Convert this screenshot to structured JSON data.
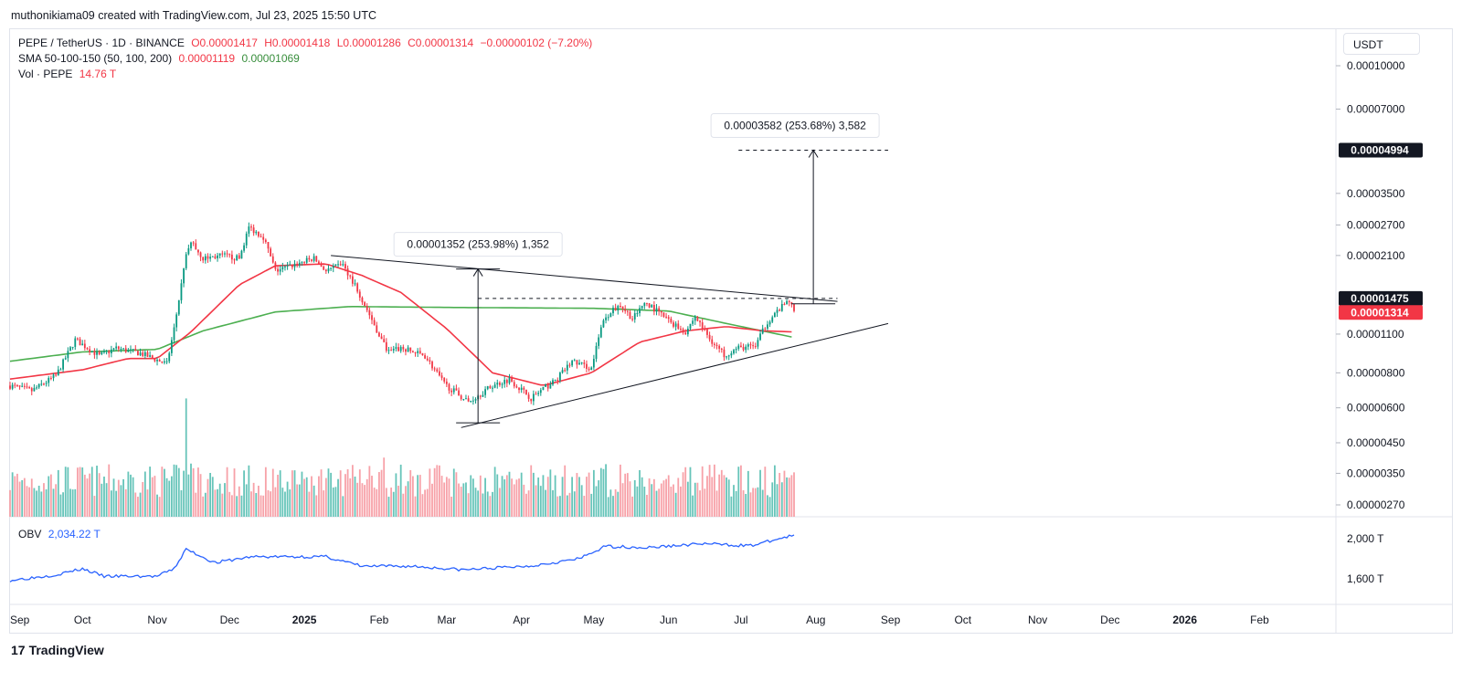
{
  "header": {
    "credit": "muthonikiama09 created with TradingView.com, Jul 23, 2025 15:50 UTC"
  },
  "legend": {
    "symbol": "PEPE / TetherUS · 1D · BINANCE",
    "open": "O0.00001417",
    "high": "H0.00001418",
    "low": "L0.00001286",
    "close": "C0.00001314",
    "change": "−0.00000102 (−7.20%)",
    "sma_label": "SMA 50-100-150 (50, 100, 200)",
    "sma_value_1": "0.00001119",
    "sma_value_2": "0.00001069",
    "vol_label": "Vol · PEPE",
    "vol_value": "14.76 T",
    "obv_label": "OBV",
    "obv_value": "2,034.22 T"
  },
  "currency": "USDT",
  "footer": {
    "brand": "TradingView",
    "logo_mark": "17"
  },
  "colors": {
    "sma50": "#f23645",
    "sma200": "#4caf50",
    "obv": "#2962ff",
    "up": "#089981",
    "down": "#f23645",
    "vol_up": "#66c4b9",
    "vol_down": "#f7a1a8"
  },
  "chart_data": {
    "type": "candlestick",
    "scale": "log",
    "price_axis_labels": [
      "0.00010000",
      "0.00007000",
      "0.00004994",
      "0.00003500",
      "0.00002700",
      "0.00002100",
      "0.00001475",
      "0.00001314",
      "0.00001100",
      "0.00000800",
      "0.00000600",
      "0.00000450",
      "0.00000350",
      "0.00000270"
    ],
    "price_ticks": [
      0.0001,
      7e-05,
      3.5e-05,
      2.7e-05,
      2.1e-05,
      1.1e-05,
      8e-06,
      6e-06,
      4.5e-06,
      3.5e-06,
      2.7e-06
    ],
    "price_markers": [
      {
        "label": "0.00004994",
        "value": 4.994e-05,
        "style": "dark"
      },
      {
        "label": "0.00001475",
        "value": 1.475e-05,
        "style": "dark"
      },
      {
        "label": "0.00001314",
        "value": 1.314e-05,
        "style": "red"
      }
    ],
    "time_labels": [
      {
        "label": "Sep",
        "date": "2024-09-01",
        "bold": false
      },
      {
        "label": "Oct",
        "date": "2024-10-01",
        "bold": false
      },
      {
        "label": "Nov",
        "date": "2024-11-01",
        "bold": false
      },
      {
        "label": "Dec",
        "date": "2024-12-01",
        "bold": false
      },
      {
        "label": "2025",
        "date": "2025-01-01",
        "bold": true
      },
      {
        "label": "Feb",
        "date": "2025-02-01",
        "bold": false
      },
      {
        "label": "Mar",
        "date": "2025-03-01",
        "bold": false
      },
      {
        "label": "Apr",
        "date": "2025-04-01",
        "bold": false
      },
      {
        "label": "May",
        "date": "2025-05-01",
        "bold": false
      },
      {
        "label": "Jun",
        "date": "2025-06-01",
        "bold": false
      },
      {
        "label": "Jul",
        "date": "2025-07-01",
        "bold": false
      },
      {
        "label": "Aug",
        "date": "2025-08-01",
        "bold": false
      },
      {
        "label": "Sep",
        "date": "2025-09-01",
        "bold": false
      },
      {
        "label": "Oct",
        "date": "2025-10-01",
        "bold": false
      },
      {
        "label": "Nov",
        "date": "2025-11-01",
        "bold": false
      },
      {
        "label": "Dec",
        "date": "2025-12-01",
        "bold": false
      },
      {
        "label": "2026",
        "date": "2026-01-01",
        "bold": true
      },
      {
        "label": "Feb",
        "date": "2026-02-01",
        "bold": false
      }
    ],
    "close_path": [
      [
        "2024-09-01",
        7.2e-06
      ],
      [
        "2024-09-10",
        6.9e-06
      ],
      [
        "2024-09-20",
        7.8e-06
      ],
      [
        "2024-09-28",
        1.05e-05
      ],
      [
        "2024-10-08",
        9.2e-06
      ],
      [
        "2024-10-15",
        9.8e-06
      ],
      [
        "2024-10-25",
        9.4e-06
      ],
      [
        "2024-11-05",
        8.6e-06
      ],
      [
        "2024-11-08",
        1.15e-05
      ],
      [
        "2024-11-13",
        2.1e-05
      ],
      [
        "2024-11-15",
        2.35e-05
      ],
      [
        "2024-11-20",
        2.05e-05
      ],
      [
        "2024-11-28",
        2.1e-05
      ],
      [
        "2024-12-05",
        2.05e-05
      ],
      [
        "2024-12-09",
        2.65e-05
      ],
      [
        "2024-12-15",
        2.45e-05
      ],
      [
        "2024-12-20",
        1.85e-05
      ],
      [
        "2024-12-28",
        1.95e-05
      ],
      [
        "2025-01-05",
        2.05e-05
      ],
      [
        "2025-01-10",
        1.85e-05
      ],
      [
        "2025-01-17",
        1.95e-05
      ],
      [
        "2025-01-22",
        1.65e-05
      ],
      [
        "2025-02-02",
        1.05e-05
      ],
      [
        "2025-02-05",
        9.5e-06
      ],
      [
        "2025-02-10",
        9.8e-06
      ],
      [
        "2025-02-20",
        9.2e-06
      ],
      [
        "2025-02-28",
        7.3e-06
      ],
      [
        "2025-03-10",
        6.3e-06
      ],
      [
        "2025-03-20",
        7.2e-06
      ],
      [
        "2025-03-27",
        7.6e-06
      ],
      [
        "2025-04-05",
        6.5e-06
      ],
      [
        "2025-04-10",
        7e-06
      ],
      [
        "2025-04-15",
        7.5e-06
      ],
      [
        "2025-04-22",
        8.8e-06
      ],
      [
        "2025-04-30",
        8.3e-06
      ],
      [
        "2025-05-05",
        1.25e-05
      ],
      [
        "2025-05-12",
        1.4e-05
      ],
      [
        "2025-05-17",
        1.25e-05
      ],
      [
        "2025-05-23",
        1.42e-05
      ],
      [
        "2025-06-01",
        1.23e-05
      ],
      [
        "2025-06-08",
        1.12e-05
      ],
      [
        "2025-06-12",
        1.27e-05
      ],
      [
        "2025-06-18",
        1.06e-05
      ],
      [
        "2025-06-24",
        9.3e-06
      ],
      [
        "2025-06-30",
        9.8e-06
      ],
      [
        "2025-07-07",
        1e-05
      ],
      [
        "2025-07-12",
        1.22e-05
      ],
      [
        "2025-07-17",
        1.35e-05
      ],
      [
        "2025-07-21",
        1.45e-05
      ],
      [
        "2025-07-23",
        1.314e-05
      ]
    ],
    "sma50": [
      [
        "2024-09-01",
        7.6e-06
      ],
      [
        "2024-10-01",
        8.2e-06
      ],
      [
        "2024-10-20",
        9e-06
      ],
      [
        "2024-11-01",
        9e-06
      ],
      [
        "2024-11-15",
        1.12e-05
      ],
      [
        "2024-12-05",
        1.65e-05
      ],
      [
        "2024-12-20",
        1.93e-05
      ],
      [
        "2025-01-10",
        1.96e-05
      ],
      [
        "2025-01-25",
        1.78e-05
      ],
      [
        "2025-02-10",
        1.55e-05
      ],
      [
        "2025-03-01",
        1.15e-05
      ],
      [
        "2025-03-20",
        8e-06
      ],
      [
        "2025-04-10",
        7.2e-06
      ],
      [
        "2025-04-30",
        8e-06
      ],
      [
        "2025-05-20",
        1.03e-05
      ],
      [
        "2025-06-08",
        1.13e-05
      ],
      [
        "2025-06-25",
        1.17e-05
      ],
      [
        "2025-07-10",
        1.13e-05
      ],
      [
        "2025-07-23",
        1.12e-05
      ]
    ],
    "sma200": [
      [
        "2024-09-01",
        8.8e-06
      ],
      [
        "2024-10-01",
        9.5e-06
      ],
      [
        "2024-11-01",
        9.7e-06
      ],
      [
        "2024-11-20",
        1.13e-05
      ],
      [
        "2024-12-20",
        1.32e-05
      ],
      [
        "2025-01-20",
        1.38e-05
      ],
      [
        "2025-03-01",
        1.37e-05
      ],
      [
        "2025-05-01",
        1.36e-05
      ],
      [
        "2025-06-01",
        1.33e-05
      ],
      [
        "2025-06-25",
        1.2e-05
      ],
      [
        "2025-07-23",
        1.07e-05
      ]
    ],
    "volume_peaks": [
      [
        "2024-11-13",
        0.72
      ],
      [
        "2025-01-18",
        0.26
      ],
      [
        "2025-02-03",
        0.36
      ],
      [
        "2025-05-06",
        0.32
      ],
      [
        "2025-05-21",
        0.24
      ]
    ],
    "obv": [
      [
        "2024-09-01",
        1585
      ],
      [
        "2024-09-20",
        1640
      ],
      [
        "2024-10-01",
        1700
      ],
      [
        "2024-10-10",
        1625
      ],
      [
        "2024-11-01",
        1625
      ],
      [
        "2024-11-08",
        1700
      ],
      [
        "2024-11-13",
        1895
      ],
      [
        "2024-11-25",
        1760
      ],
      [
        "2024-12-10",
        1820
      ],
      [
        "2025-01-10",
        1820
      ],
      [
        "2025-01-25",
        1725
      ],
      [
        "2025-02-15",
        1725
      ],
      [
        "2025-03-08",
        1690
      ],
      [
        "2025-04-05",
        1730
      ],
      [
        "2025-04-25",
        1800
      ],
      [
        "2025-05-06",
        1925
      ],
      [
        "2025-05-23",
        1910
      ],
      [
        "2025-06-15",
        1950
      ],
      [
        "2025-07-05",
        1930
      ],
      [
        "2025-07-23",
        2034
      ]
    ],
    "obv_axis_labels": [
      {
        "label": "2,000 T",
        "value": 2000
      },
      {
        "label": "1,600 T",
        "value": 1600
      }
    ],
    "annotations": [
      {
        "label": "0.00001352 (253.98%) 1,352",
        "kind": "measure",
        "from": [
          "2025-03-14",
          5.3e-06
        ],
        "to": [
          "2025-03-14",
          1.88e-05
        ]
      },
      {
        "label": "0.00003582 (253.68%) 3,582",
        "kind": "measure",
        "from": [
          "2025-07-31",
          1.412e-05
        ],
        "to": [
          "2025-07-31",
          4.994e-05
        ]
      }
    ],
    "trendlines": [
      {
        "name": "upper",
        "from": [
          "2025-01-12",
          2.1e-05
        ],
        "to": [
          "2025-08-10",
          1.44e-05
        ]
      },
      {
        "name": "lower",
        "from": [
          "2025-03-07",
          5.1e-06
        ],
        "to": [
          "2025-08-31",
          1.2e-05
        ]
      },
      {
        "name": "breakout-level",
        "from": [
          "2025-03-14",
          1.475e-05
        ],
        "to": [
          "2025-08-10",
          1.475e-05
        ],
        "dashed": true
      },
      {
        "name": "target-level",
        "from": [
          "2025-06-30",
          4.994e-05
        ],
        "to": [
          "2025-08-31",
          4.994e-05
        ],
        "dashed": true
      }
    ]
  }
}
